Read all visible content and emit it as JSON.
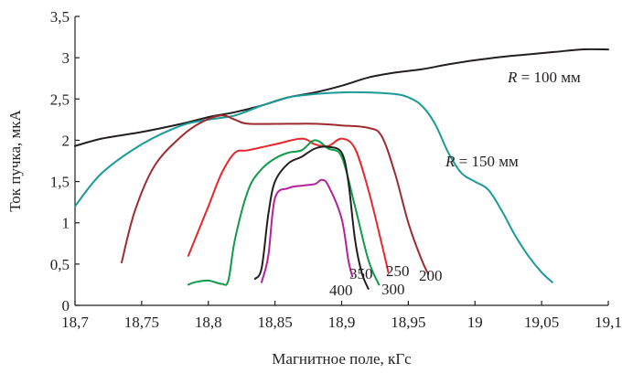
{
  "chart_data": {
    "type": "line",
    "xlabel": "Магнитное поле, кГс",
    "ylabel": "Ток пучка, мкА",
    "xlim": [
      18.7,
      19.1
    ],
    "ylim": [
      0,
      3.5
    ],
    "x_ticks": [
      "18,7",
      "18,75",
      "18,8",
      "18,85",
      "18,9",
      "18,95",
      "19",
      "19,05",
      "19,1"
    ],
    "y_ticks": [
      "0",
      "0,5",
      "1",
      "1,5",
      "2",
      "2,5",
      "3",
      "3,5"
    ],
    "grid": false,
    "legend": "none",
    "series": [
      {
        "name": "R = 100 мм",
        "label_parts": {
          "italic": "R",
          "rest": " = 100 мм"
        },
        "color": "#231f20",
        "x": [
          18.7,
          18.72,
          18.75,
          18.78,
          18.8,
          18.82,
          18.84,
          18.86,
          18.88,
          18.9,
          18.92,
          18.94,
          18.96,
          18.98,
          19.0,
          19.02,
          19.04,
          19.06,
          19.08,
          19.1
        ],
        "y": [
          1.93,
          2.02,
          2.1,
          2.2,
          2.28,
          2.34,
          2.42,
          2.52,
          2.58,
          2.66,
          2.76,
          2.82,
          2.86,
          2.92,
          2.97,
          3.01,
          3.04,
          3.07,
          3.1,
          3.1
        ]
      },
      {
        "name": "R = 150 мм",
        "label_parts": {
          "italic": "R",
          "rest": " = 150 мм"
        },
        "color": "#1a9b98",
        "x": [
          18.7,
          18.72,
          18.75,
          18.78,
          18.8,
          18.82,
          18.84,
          18.86,
          18.88,
          18.9,
          18.92,
          18.94,
          18.95,
          18.96,
          18.97,
          18.98,
          18.99,
          19.0,
          19.01,
          19.02,
          19.03,
          19.04,
          19.05,
          19.058
        ],
        "y": [
          1.2,
          1.6,
          1.95,
          2.18,
          2.25,
          2.3,
          2.42,
          2.52,
          2.56,
          2.58,
          2.58,
          2.56,
          2.52,
          2.42,
          2.2,
          1.85,
          1.6,
          1.5,
          1.4,
          1.15,
          0.85,
          0.6,
          0.4,
          0.28
        ]
      },
      {
        "name": "200",
        "color": "#9e2a2f",
        "x": [
          18.735,
          18.745,
          18.76,
          18.78,
          18.795,
          18.81,
          18.82,
          18.83,
          18.86,
          18.88,
          18.9,
          18.92,
          18.93,
          18.94,
          18.95,
          18.96,
          18.965
        ],
        "y": [
          0.52,
          1.15,
          1.7,
          2.05,
          2.22,
          2.3,
          2.25,
          2.2,
          2.2,
          2.2,
          2.18,
          2.15,
          2.05,
          1.6,
          1.0,
          0.55,
          0.38
        ]
      },
      {
        "name": "250",
        "color": "#e8262d",
        "x": [
          18.785,
          18.8,
          18.81,
          18.82,
          18.83,
          18.85,
          18.87,
          18.88,
          18.89,
          18.9,
          18.91,
          18.92,
          18.93,
          18.935
        ],
        "y": [
          0.6,
          1.2,
          1.6,
          1.85,
          1.88,
          1.95,
          2.02,
          1.95,
          1.93,
          2.02,
          1.9,
          1.4,
          0.75,
          0.4
        ]
      },
      {
        "name": "300",
        "color": "#0f9b48",
        "x": [
          18.785,
          18.79,
          18.8,
          18.81,
          18.815,
          18.82,
          18.83,
          18.84,
          18.85,
          18.86,
          18.87,
          18.88,
          18.89,
          18.9,
          18.91,
          18.92,
          18.928
        ],
        "y": [
          0.25,
          0.28,
          0.3,
          0.26,
          0.3,
          0.8,
          1.4,
          1.65,
          1.78,
          1.85,
          1.88,
          2.0,
          1.9,
          1.8,
          1.2,
          0.55,
          0.25
        ]
      },
      {
        "name": "350",
        "color": "#231f20",
        "x": [
          18.835,
          18.84,
          18.845,
          18.85,
          18.86,
          18.87,
          18.88,
          18.89,
          18.9,
          18.905,
          18.91,
          18.915,
          18.92
        ],
        "y": [
          0.32,
          0.45,
          1.1,
          1.5,
          1.72,
          1.8,
          1.9,
          1.92,
          1.85,
          1.5,
          0.8,
          0.4,
          0.2
        ]
      },
      {
        "name": "400",
        "color": "#b5219c",
        "x": [
          18.84,
          18.845,
          18.85,
          18.86,
          18.87,
          18.88,
          18.885,
          18.89,
          18.9,
          18.905,
          18.908
        ],
        "y": [
          0.28,
          0.6,
          1.3,
          1.42,
          1.45,
          1.47,
          1.52,
          1.45,
          1.05,
          0.55,
          0.35
        ]
      }
    ]
  }
}
